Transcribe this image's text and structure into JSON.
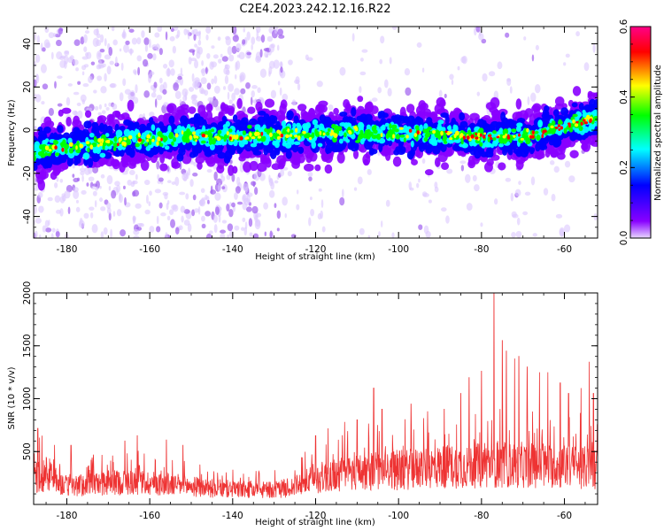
{
  "title": "C2E4.2023.242.12.16.R22",
  "chart_data": [
    {
      "type": "heatmap",
      "xlabel": "Height of straight line (km)",
      "ylabel": "Frequency (Hz)",
      "xlim": [
        -188,
        -52
      ],
      "ylim": [
        -50,
        48
      ],
      "xticks": [
        -180,
        -160,
        -140,
        -120,
        -100,
        -80,
        -60
      ],
      "yticks": [
        -40,
        -20,
        0,
        20,
        40
      ],
      "grid": false,
      "ridge": {
        "x": [
          -188,
          -180,
          -170,
          -160,
          -150,
          -140,
          -130,
          -120,
          -110,
          -100,
          -90,
          -80,
          -70,
          -60,
          -53
        ],
        "y": [
          -10,
          -8,
          -6,
          -4,
          -3,
          -3,
          -2,
          -2,
          -1,
          -1,
          -2,
          -3,
          -3,
          2,
          5
        ]
      },
      "colorbar": {
        "label": "Normalized spectral amplitude",
        "range": [
          0.0,
          0.6
        ],
        "ticks": [
          0.0,
          0.2,
          0.4,
          0.6
        ],
        "colors": [
          "#e8d8ff",
          "#8800ff",
          "#0000ff",
          "#00ffff",
          "#00ff00",
          "#ffff00",
          "#ff0000",
          "#ff0088"
        ]
      }
    },
    {
      "type": "line",
      "xlabel": "Height of straight line (km)",
      "ylabel": "SNR (10 * v/v)",
      "xlim": [
        -188,
        -52
      ],
      "ylim": [
        0,
        2000
      ],
      "xticks": [
        -180,
        -160,
        -140,
        -120,
        -100,
        -80,
        -60
      ],
      "yticks": [
        500,
        1000,
        1500,
        2000
      ],
      "grid": false,
      "series": [
        {
          "color": "#ee3333",
          "x": [
            -188,
            -185,
            -180,
            -175,
            -170,
            -165,
            -160,
            -155,
            -150,
            -145,
            -140,
            -135,
            -130,
            -125,
            -120,
            -115,
            -110,
            -105,
            -100,
            -95,
            -90,
            -85,
            -80,
            -77,
            -75,
            -70,
            -65,
            -60,
            -55,
            -52
          ],
          "y": [
            280,
            350,
            200,
            220,
            240,
            250,
            240,
            220,
            200,
            180,
            170,
            160,
            160,
            200,
            290,
            330,
            360,
            380,
            380,
            400,
            420,
            430,
            430,
            450,
            430,
            440,
            430,
            420,
            410,
            400
          ],
          "peaks": [
            {
              "x": -187,
              "y": 720
            },
            {
              "x": -186,
              "y": 650
            },
            {
              "x": -179,
              "y": 560
            },
            {
              "x": -166,
              "y": 600
            },
            {
              "x": -163,
              "y": 650
            },
            {
              "x": -156,
              "y": 610
            },
            {
              "x": -152,
              "y": 560
            },
            {
              "x": -120,
              "y": 650
            },
            {
              "x": -117,
              "y": 720
            },
            {
              "x": -113,
              "y": 780
            },
            {
              "x": -110,
              "y": 800
            },
            {
              "x": -106,
              "y": 1100
            },
            {
              "x": -104,
              "y": 900
            },
            {
              "x": -97,
              "y": 950
            },
            {
              "x": -93,
              "y": 880
            },
            {
              "x": -89,
              "y": 900
            },
            {
              "x": -85,
              "y": 1050
            },
            {
              "x": -83,
              "y": 1200
            },
            {
              "x": -80,
              "y": 1260
            },
            {
              "x": -77,
              "y": 2000
            },
            {
              "x": -75,
              "y": 1550
            },
            {
              "x": -74,
              "y": 1450
            },
            {
              "x": -72,
              "y": 1380
            },
            {
              "x": -71,
              "y": 1400
            },
            {
              "x": -69,
              "y": 1300
            },
            {
              "x": -66,
              "y": 1250
            },
            {
              "x": -64,
              "y": 1250
            },
            {
              "x": -61,
              "y": 1150
            },
            {
              "x": -59,
              "y": 1050
            },
            {
              "x": -56,
              "y": 1100
            },
            {
              "x": -54,
              "y": 1350
            },
            {
              "x": -53,
              "y": 1050
            }
          ]
        }
      ]
    }
  ]
}
